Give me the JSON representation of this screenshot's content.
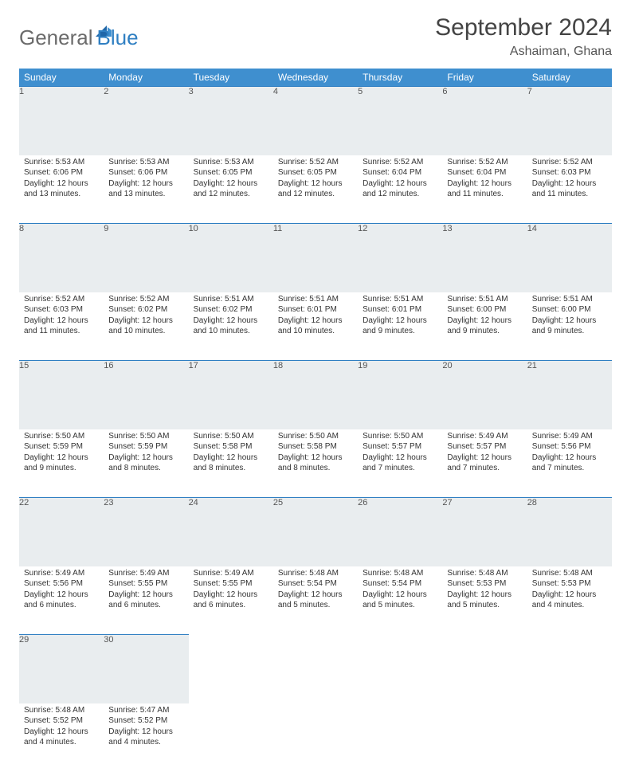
{
  "brand": {
    "word1": "General",
    "word2": "Blue"
  },
  "title": "September 2024",
  "location": "Ashaiman, Ghana",
  "colors": {
    "header_bg": "#3f8fcf",
    "daynum_bg": "#e9edef",
    "border": "#2f7fc2"
  },
  "layout": {
    "cols": 7,
    "rows": 5
  },
  "weekdays": [
    "Sunday",
    "Monday",
    "Tuesday",
    "Wednesday",
    "Thursday",
    "Friday",
    "Saturday"
  ],
  "days": [
    {
      "n": "1",
      "sr": "5:53 AM",
      "ss": "6:06 PM",
      "dl": "12 hours and 13 minutes."
    },
    {
      "n": "2",
      "sr": "5:53 AM",
      "ss": "6:06 PM",
      "dl": "12 hours and 13 minutes."
    },
    {
      "n": "3",
      "sr": "5:53 AM",
      "ss": "6:05 PM",
      "dl": "12 hours and 12 minutes."
    },
    {
      "n": "4",
      "sr": "5:52 AM",
      "ss": "6:05 PM",
      "dl": "12 hours and 12 minutes."
    },
    {
      "n": "5",
      "sr": "5:52 AM",
      "ss": "6:04 PM",
      "dl": "12 hours and 12 minutes."
    },
    {
      "n": "6",
      "sr": "5:52 AM",
      "ss": "6:04 PM",
      "dl": "12 hours and 11 minutes."
    },
    {
      "n": "7",
      "sr": "5:52 AM",
      "ss": "6:03 PM",
      "dl": "12 hours and 11 minutes."
    },
    {
      "n": "8",
      "sr": "5:52 AM",
      "ss": "6:03 PM",
      "dl": "12 hours and 11 minutes."
    },
    {
      "n": "9",
      "sr": "5:52 AM",
      "ss": "6:02 PM",
      "dl": "12 hours and 10 minutes."
    },
    {
      "n": "10",
      "sr": "5:51 AM",
      "ss": "6:02 PM",
      "dl": "12 hours and 10 minutes."
    },
    {
      "n": "11",
      "sr": "5:51 AM",
      "ss": "6:01 PM",
      "dl": "12 hours and 10 minutes."
    },
    {
      "n": "12",
      "sr": "5:51 AM",
      "ss": "6:01 PM",
      "dl": "12 hours and 9 minutes."
    },
    {
      "n": "13",
      "sr": "5:51 AM",
      "ss": "6:00 PM",
      "dl": "12 hours and 9 minutes."
    },
    {
      "n": "14",
      "sr": "5:51 AM",
      "ss": "6:00 PM",
      "dl": "12 hours and 9 minutes."
    },
    {
      "n": "15",
      "sr": "5:50 AM",
      "ss": "5:59 PM",
      "dl": "12 hours and 9 minutes."
    },
    {
      "n": "16",
      "sr": "5:50 AM",
      "ss": "5:59 PM",
      "dl": "12 hours and 8 minutes."
    },
    {
      "n": "17",
      "sr": "5:50 AM",
      "ss": "5:58 PM",
      "dl": "12 hours and 8 minutes."
    },
    {
      "n": "18",
      "sr": "5:50 AM",
      "ss": "5:58 PM",
      "dl": "12 hours and 8 minutes."
    },
    {
      "n": "19",
      "sr": "5:50 AM",
      "ss": "5:57 PM",
      "dl": "12 hours and 7 minutes."
    },
    {
      "n": "20",
      "sr": "5:49 AM",
      "ss": "5:57 PM",
      "dl": "12 hours and 7 minutes."
    },
    {
      "n": "21",
      "sr": "5:49 AM",
      "ss": "5:56 PM",
      "dl": "12 hours and 7 minutes."
    },
    {
      "n": "22",
      "sr": "5:49 AM",
      "ss": "5:56 PM",
      "dl": "12 hours and 6 minutes."
    },
    {
      "n": "23",
      "sr": "5:49 AM",
      "ss": "5:55 PM",
      "dl": "12 hours and 6 minutes."
    },
    {
      "n": "24",
      "sr": "5:49 AM",
      "ss": "5:55 PM",
      "dl": "12 hours and 6 minutes."
    },
    {
      "n": "25",
      "sr": "5:48 AM",
      "ss": "5:54 PM",
      "dl": "12 hours and 5 minutes."
    },
    {
      "n": "26",
      "sr": "5:48 AM",
      "ss": "5:54 PM",
      "dl": "12 hours and 5 minutes."
    },
    {
      "n": "27",
      "sr": "5:48 AM",
      "ss": "5:53 PM",
      "dl": "12 hours and 5 minutes."
    },
    {
      "n": "28",
      "sr": "5:48 AM",
      "ss": "5:53 PM",
      "dl": "12 hours and 4 minutes."
    },
    {
      "n": "29",
      "sr": "5:48 AM",
      "ss": "5:52 PM",
      "dl": "12 hours and 4 minutes."
    },
    {
      "n": "30",
      "sr": "5:47 AM",
      "ss": "5:52 PM",
      "dl": "12 hours and 4 minutes."
    }
  ],
  "labels": {
    "sunrise": "Sunrise:",
    "sunset": "Sunset:",
    "daylight": "Daylight:"
  }
}
